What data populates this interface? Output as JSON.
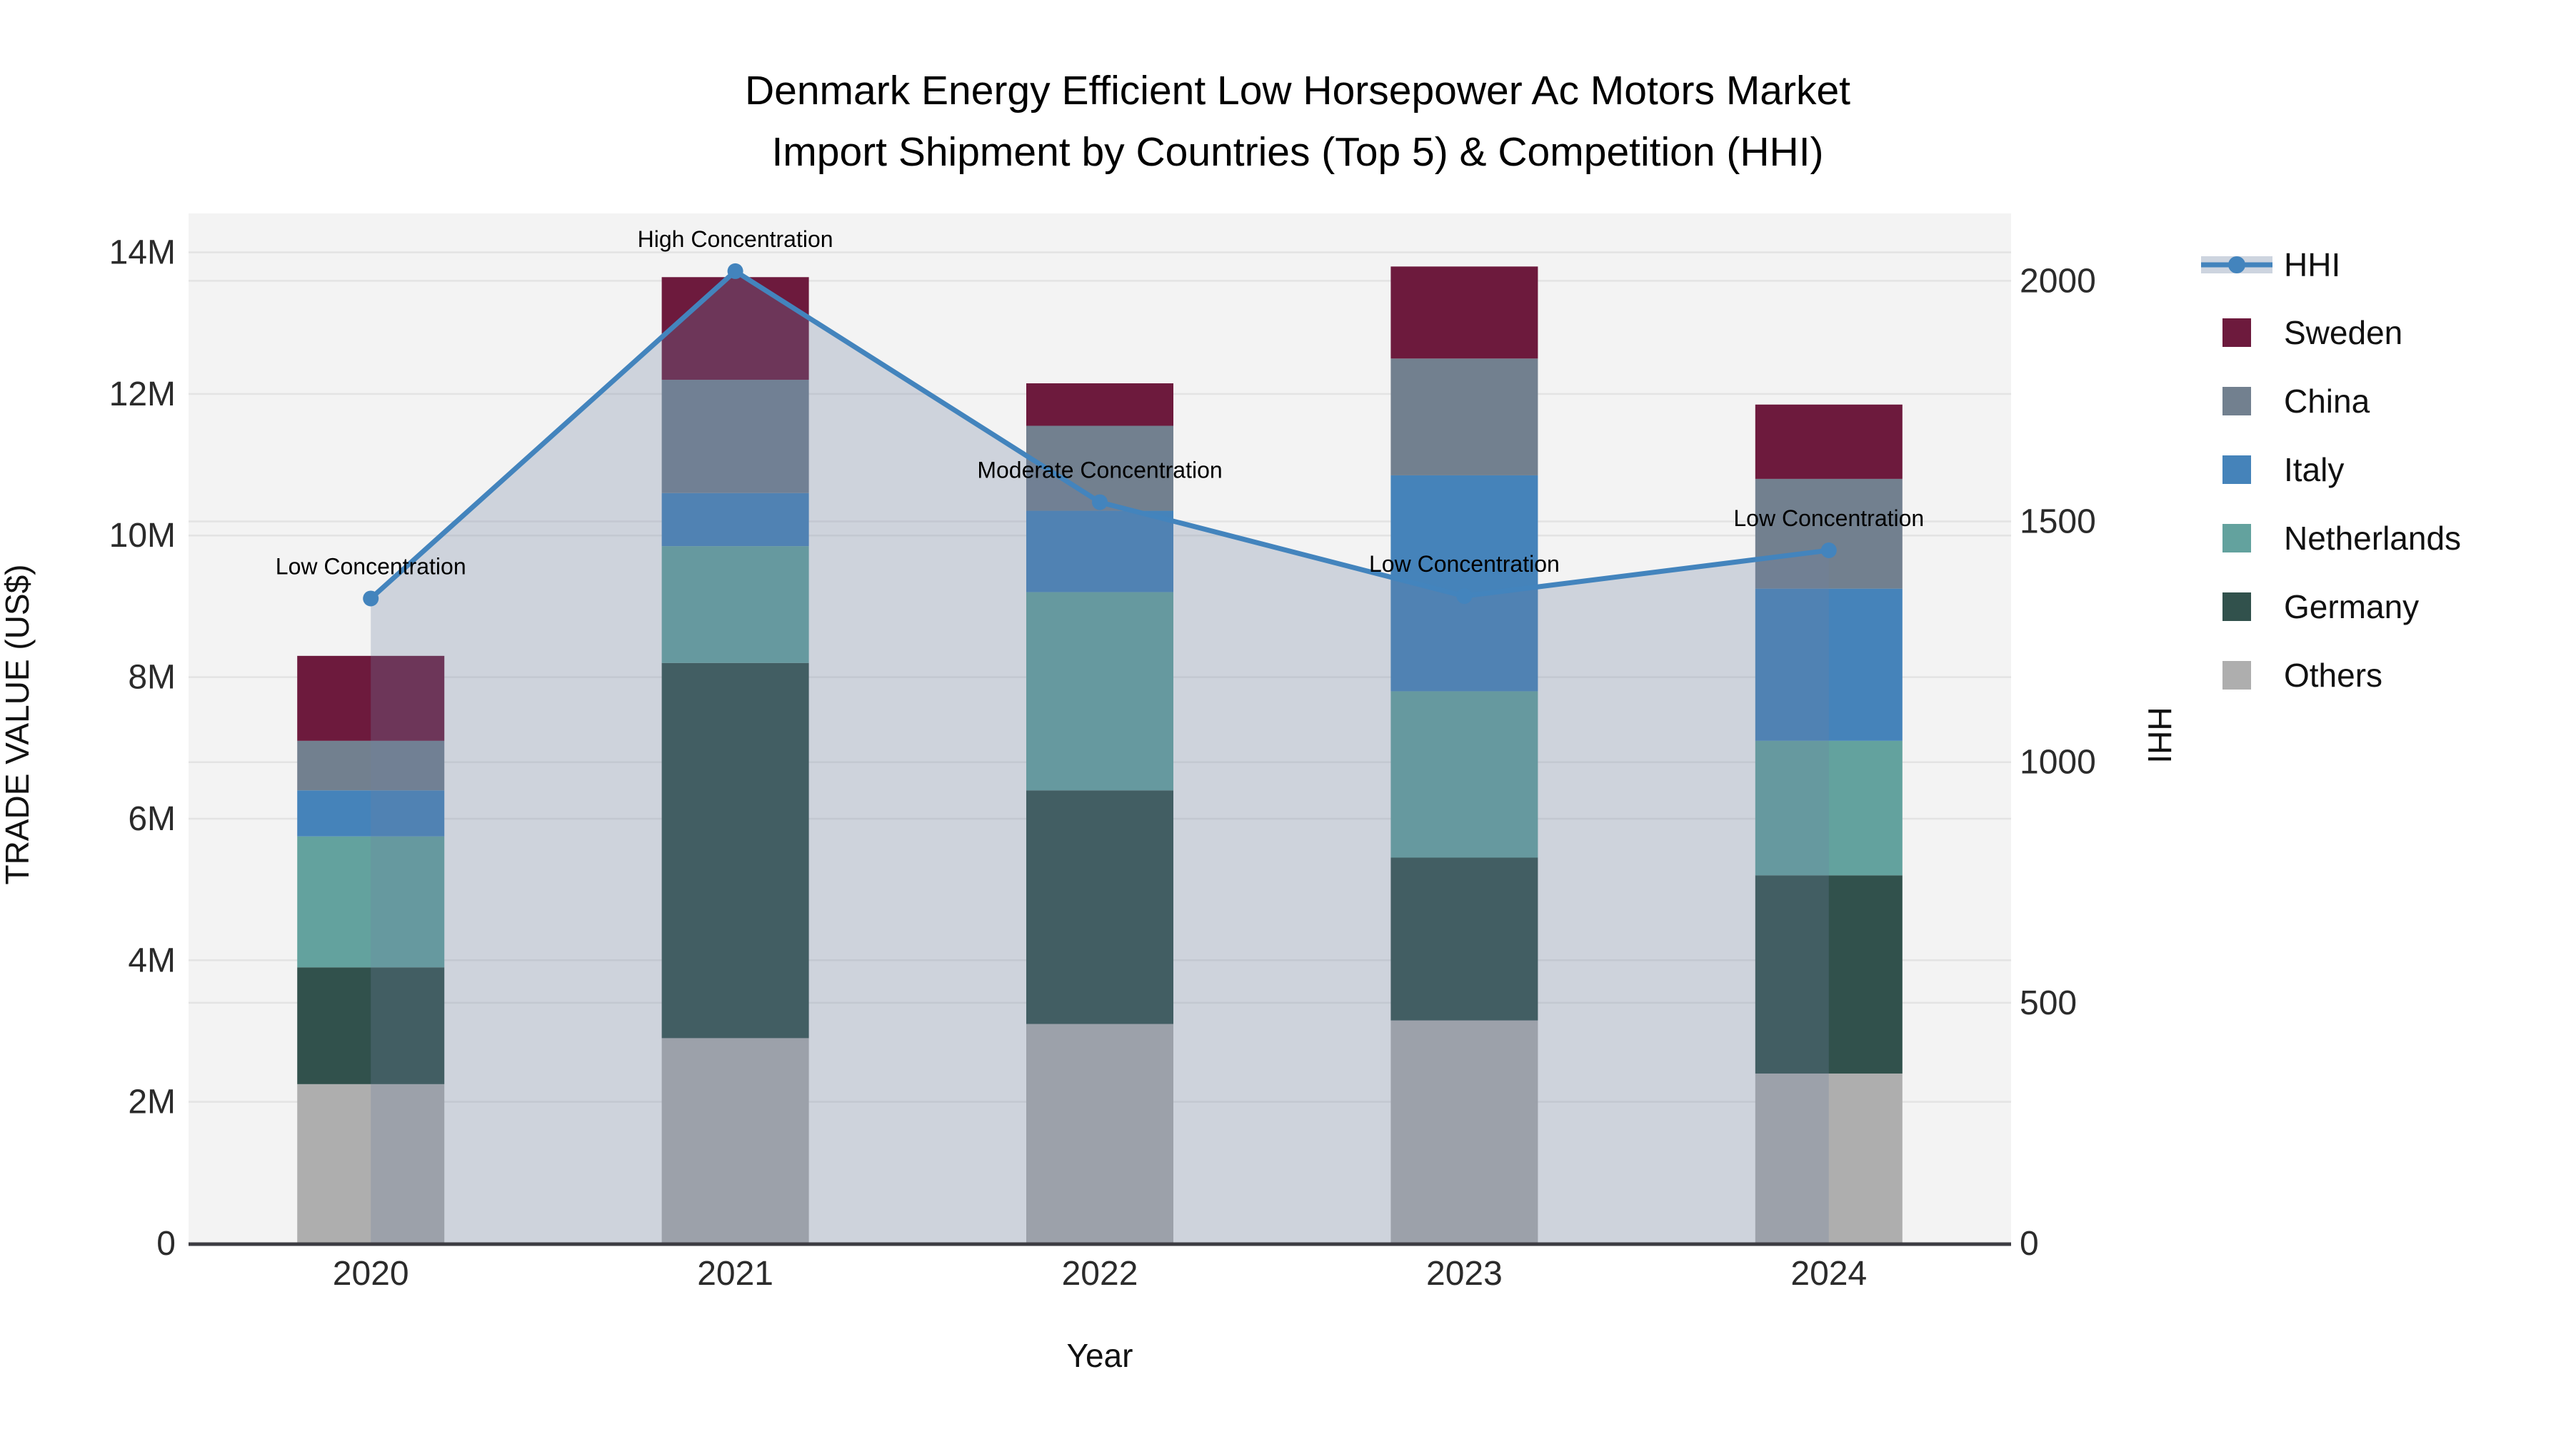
{
  "title": {
    "line1": "Denmark Energy Efficient Low Horsepower Ac Motors Market",
    "line2": "Import Shipment by Countries (Top 5) & Competition (HHI)"
  },
  "colors": {
    "background": "#ffffff",
    "plot_bg": "#f3f3f3",
    "grid": "#e3e3e3",
    "axis_line": "#3c3c42",
    "hhi_line": "#4384bd",
    "hhi_area_fill": "rgba(110,130,160,0.28)",
    "hhi_legend_band": "#cdd4df"
  },
  "axes": {
    "left_title": "TRADE VALUE (US$)",
    "right_title": "HHI",
    "x_title": "Year",
    "left_ticks": [
      {
        "label": "0",
        "value": 0
      },
      {
        "label": "2M",
        "value": 2
      },
      {
        "label": "4M",
        "value": 4
      },
      {
        "label": "6M",
        "value": 6
      },
      {
        "label": "8M",
        "value": 8
      },
      {
        "label": "10M",
        "value": 10
      },
      {
        "label": "12M",
        "value": 12
      },
      {
        "label": "14M",
        "value": 14
      }
    ],
    "right_ticks": [
      {
        "label": "0",
        "value": 0
      },
      {
        "label": "500",
        "value": 500
      },
      {
        "label": "1000",
        "value": 1000
      },
      {
        "label": "1500",
        "value": 1500
      },
      {
        "label": "2000",
        "value": 2000
      }
    ]
  },
  "legend": {
    "items": [
      {
        "label": "HHI",
        "type": "line"
      },
      {
        "label": "Sweden",
        "color": "#6d1a3d"
      },
      {
        "label": "China",
        "color": "#72808f"
      },
      {
        "label": "Italy",
        "color": "#4583ba"
      },
      {
        "label": "Netherlands",
        "color": "#63a29e"
      },
      {
        "label": "Germany",
        "color": "#31514c"
      },
      {
        "label": "Others",
        "color": "#aeaeae"
      }
    ]
  },
  "annotations": [
    {
      "text": "Low Concentration",
      "year": 2020
    },
    {
      "text": "High Concentration",
      "year": 2021
    },
    {
      "text": "Moderate Concentration",
      "year": 2022
    },
    {
      "text": "Low Concentration",
      "year": 2023
    },
    {
      "text": "Low Concentration",
      "year": 2024
    }
  ],
  "chart_data": {
    "type": "bar-line",
    "title": "Denmark Energy Efficient Low Horsepower Ac Motors Market Import Shipment by Countries (Top 5) & Competition (HHI)",
    "categories": [
      2020,
      2021,
      2022,
      2023,
      2024
    ],
    "bar_unit": "USD millions (trade value)",
    "stack_order_bottom_to_top": [
      "Others",
      "Germany",
      "Netherlands",
      "Italy",
      "China",
      "Sweden"
    ],
    "series": [
      {
        "name": "Others",
        "color": "#aeaeae",
        "values": [
          2.25,
          2.9,
          3.1,
          3.15,
          2.4
        ]
      },
      {
        "name": "Germany",
        "color": "#31514c",
        "values": [
          1.65,
          5.3,
          3.3,
          2.3,
          2.8
        ]
      },
      {
        "name": "Netherlands",
        "color": "#63a29e",
        "values": [
          1.85,
          1.65,
          2.8,
          2.35,
          1.9
        ]
      },
      {
        "name": "Italy",
        "color": "#4583ba",
        "values": [
          0.65,
          0.75,
          1.15,
          3.05,
          2.15
        ]
      },
      {
        "name": "China",
        "color": "#72808f",
        "values": [
          0.7,
          1.6,
          1.2,
          1.65,
          1.55
        ]
      },
      {
        "name": "Sweden",
        "color": "#6d1a3d",
        "values": [
          1.2,
          1.45,
          0.6,
          1.3,
          1.05
        ]
      }
    ],
    "bar_totals": [
      8.3,
      13.65,
      12.15,
      13.8,
      11.85
    ],
    "line_series": {
      "name": "HHI",
      "axis": "right",
      "values": [
        1340,
        2020,
        1540,
        1345,
        1440
      ]
    },
    "xlabel": "Year",
    "ylabel": "TRADE VALUE (US$)",
    "y2label": "HHI",
    "ylim": [
      0,
      14.55
    ],
    "y2lim": [
      0,
      2140
    ],
    "grid": true,
    "legend_position": "right"
  }
}
